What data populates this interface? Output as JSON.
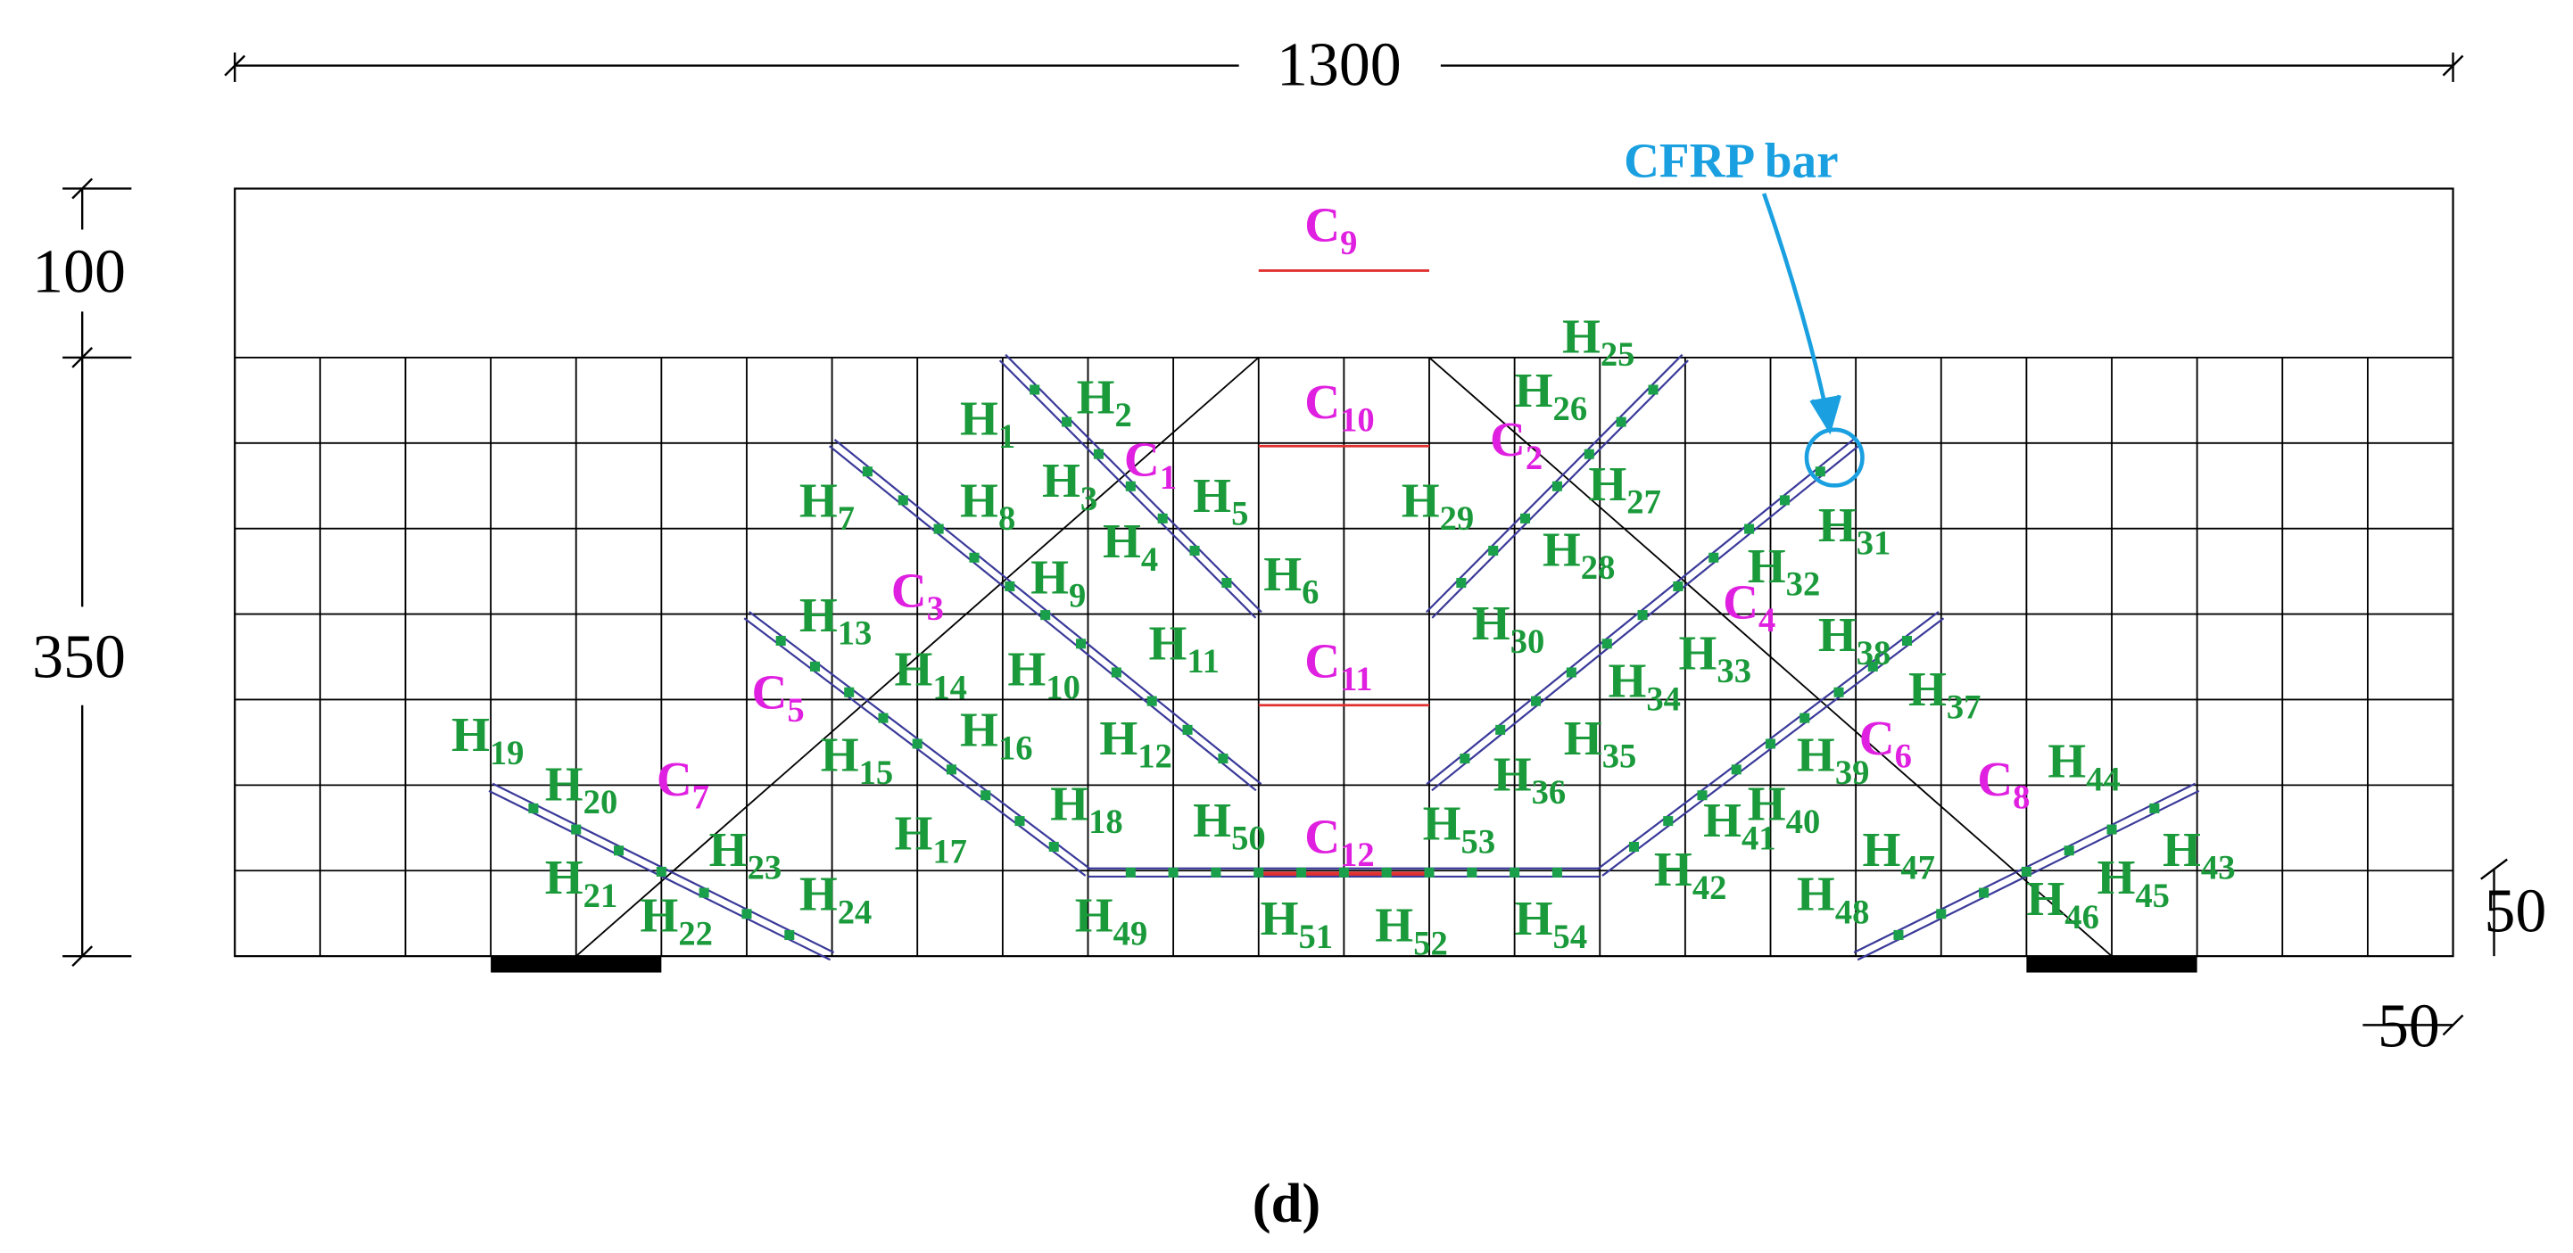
{
  "dimensions": {
    "length": "1300",
    "top_depth": "100",
    "web_depth": "350",
    "right_offset": "50",
    "bottom_offset": "50"
  },
  "callout": "CFRP bar",
  "caption": "(d)",
  "gauges": [
    {
      "letter": "H",
      "sub": "1"
    },
    {
      "letter": "H",
      "sub": "2"
    },
    {
      "letter": "H",
      "sub": "3"
    },
    {
      "letter": "H",
      "sub": "4"
    },
    {
      "letter": "H",
      "sub": "5"
    },
    {
      "letter": "H",
      "sub": "6"
    },
    {
      "letter": "H",
      "sub": "7"
    },
    {
      "letter": "H",
      "sub": "8"
    },
    {
      "letter": "H",
      "sub": "9"
    },
    {
      "letter": "H",
      "sub": "10"
    },
    {
      "letter": "H",
      "sub": "11"
    },
    {
      "letter": "H",
      "sub": "12"
    },
    {
      "letter": "H",
      "sub": "13"
    },
    {
      "letter": "H",
      "sub": "14"
    },
    {
      "letter": "H",
      "sub": "15"
    },
    {
      "letter": "H",
      "sub": "16"
    },
    {
      "letter": "H",
      "sub": "17"
    },
    {
      "letter": "H",
      "sub": "18"
    },
    {
      "letter": "H",
      "sub": "19"
    },
    {
      "letter": "H",
      "sub": "20"
    },
    {
      "letter": "H",
      "sub": "21"
    },
    {
      "letter": "H",
      "sub": "22"
    },
    {
      "letter": "H",
      "sub": "23"
    },
    {
      "letter": "H",
      "sub": "24"
    },
    {
      "letter": "H",
      "sub": "25"
    },
    {
      "letter": "H",
      "sub": "26"
    },
    {
      "letter": "H",
      "sub": "27"
    },
    {
      "letter": "H",
      "sub": "28"
    },
    {
      "letter": "H",
      "sub": "29"
    },
    {
      "letter": "H",
      "sub": "30"
    },
    {
      "letter": "H",
      "sub": "31"
    },
    {
      "letter": "H",
      "sub": "32"
    },
    {
      "letter": "H",
      "sub": "33"
    },
    {
      "letter": "H",
      "sub": "34"
    },
    {
      "letter": "H",
      "sub": "35"
    },
    {
      "letter": "H",
      "sub": "36"
    },
    {
      "letter": "H",
      "sub": "37"
    },
    {
      "letter": "H",
      "sub": "38"
    },
    {
      "letter": "H",
      "sub": "39"
    },
    {
      "letter": "H",
      "sub": "40"
    },
    {
      "letter": "H",
      "sub": "41"
    },
    {
      "letter": "H",
      "sub": "42"
    },
    {
      "letter": "H",
      "sub": "43"
    },
    {
      "letter": "H",
      "sub": "44"
    },
    {
      "letter": "H",
      "sub": "45"
    },
    {
      "letter": "H",
      "sub": "46"
    },
    {
      "letter": "H",
      "sub": "47"
    },
    {
      "letter": "H",
      "sub": "48"
    },
    {
      "letter": "H",
      "sub": "49"
    },
    {
      "letter": "H",
      "sub": "50"
    },
    {
      "letter": "H",
      "sub": "51"
    },
    {
      "letter": "H",
      "sub": "52"
    },
    {
      "letter": "H",
      "sub": "53"
    },
    {
      "letter": "H",
      "sub": "54"
    }
  ],
  "strain_gauges": [
    {
      "letter": "C",
      "sub": "1"
    },
    {
      "letter": "C",
      "sub": "2"
    },
    {
      "letter": "C",
      "sub": "3"
    },
    {
      "letter": "C",
      "sub": "4"
    },
    {
      "letter": "C",
      "sub": "5"
    },
    {
      "letter": "C",
      "sub": "6"
    },
    {
      "letter": "C",
      "sub": "7"
    },
    {
      "letter": "C",
      "sub": "8"
    },
    {
      "letter": "C",
      "sub": "9"
    },
    {
      "letter": "C",
      "sub": "10"
    },
    {
      "letter": "C",
      "sub": "11"
    },
    {
      "letter": "C",
      "sub": "12"
    }
  ]
}
